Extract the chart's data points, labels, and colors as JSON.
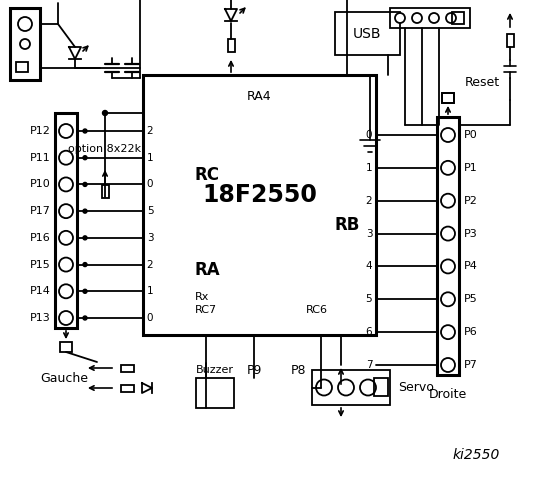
{
  "bg_color": "#ffffff",
  "chip_label": "18F2550",
  "chip_sub": "RA4",
  "rc_label": "RC",
  "ra_label": "RA",
  "rb_label": "RB",
  "left_pins_rc": [
    "2",
    "1",
    "0"
  ],
  "left_pins_ra": [
    "5",
    "3",
    "2",
    "1",
    "0"
  ],
  "left_labels": [
    "P12",
    "P11",
    "P10",
    "P17",
    "P16",
    "P15",
    "P14",
    "P13"
  ],
  "right_pins_rb": [
    "0",
    "1",
    "2",
    "3",
    "4",
    "5",
    "6",
    "7"
  ],
  "right_labels": [
    "P0",
    "P1",
    "P2",
    "P3",
    "P4",
    "P5",
    "P6",
    "P7"
  ],
  "bottom_left": "Gauche",
  "bottom_right": "Droite",
  "watermark": "ki2550",
  "option_label": "option 8x22k",
  "rx_label": "Rx",
  "rc7_label": "RC7",
  "rc6_label": "RC6",
  "reset_label": "Reset",
  "usb_label": "USB",
  "buzzer_label": "Buzzer",
  "p9_label": "P9",
  "p8_label": "P8",
  "servo_label": "Servo"
}
